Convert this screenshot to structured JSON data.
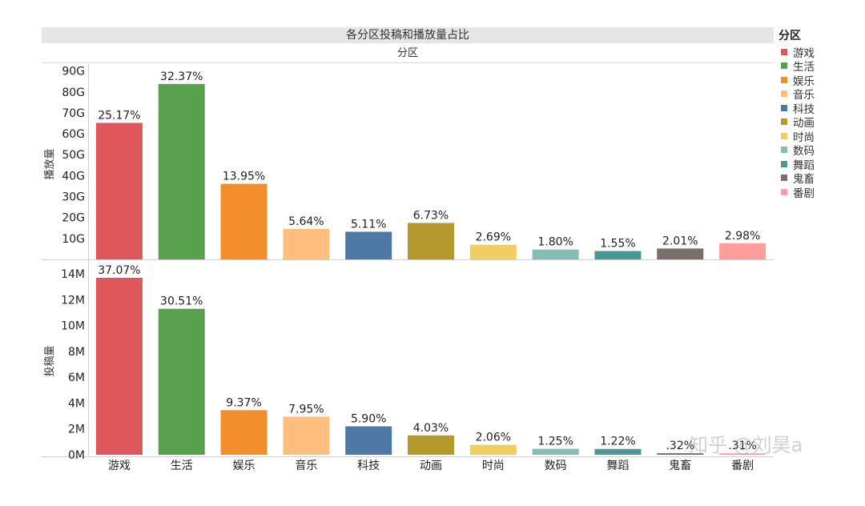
{
  "title": "各分区投稿和播放量占比",
  "column_header": "分区",
  "legend": {
    "title": "分区",
    "items": [
      {
        "label": "游戏",
        "color": "#e0575b"
      },
      {
        "label": "生活",
        "color": "#59a14f"
      },
      {
        "label": "娱乐",
        "color": "#f28e2b"
      },
      {
        "label": "音乐",
        "color": "#ffbe7d"
      },
      {
        "label": "科技",
        "color": "#4e79a7"
      },
      {
        "label": "动画",
        "color": "#b6992d"
      },
      {
        "label": "时尚",
        "color": "#f1ce63"
      },
      {
        "label": "数码",
        "color": "#86bcb6"
      },
      {
        "label": "舞蹈",
        "color": "#499894"
      },
      {
        "label": "鬼畜",
        "color": "#79706e"
      },
      {
        "label": "番剧",
        "color": "#ff9d9a"
      }
    ]
  },
  "watermark": "知乎 @刘昊a",
  "chart_data": [
    {
      "type": "bar",
      "ylabel": "播放量",
      "categories": [
        "游戏",
        "生活",
        "娱乐",
        "音乐",
        "科技",
        "动画",
        "时尚",
        "数码",
        "舞蹈",
        "鬼畜",
        "番剧"
      ],
      "values": [
        65.2,
        83.8,
        36.1,
        14.6,
        13.2,
        17.4,
        7.0,
        4.7,
        4.0,
        5.2,
        7.7
      ],
      "unit": "G",
      "labels": [
        "25.17%",
        "32.37%",
        "13.95%",
        "5.64%",
        "5.11%",
        "6.73%",
        "2.69%",
        "1.80%",
        "1.55%",
        "2.01%",
        "2.98%"
      ],
      "yticks": [
        "10G",
        "20G",
        "30G",
        "40G",
        "50G",
        "60G",
        "70G",
        "80G",
        "90G"
      ],
      "ytick_values": [
        10,
        20,
        30,
        40,
        50,
        60,
        70,
        80,
        90
      ],
      "ylim": [
        0,
        91
      ]
    },
    {
      "type": "bar",
      "ylabel": "投稿量",
      "categories": [
        "游戏",
        "生活",
        "娱乐",
        "音乐",
        "科技",
        "动画",
        "时尚",
        "数码",
        "舞蹈",
        "鬼畜",
        "番剧"
      ],
      "values": [
        13.7,
        11.3,
        3.45,
        2.95,
        2.2,
        1.5,
        0.77,
        0.46,
        0.45,
        0.12,
        0.11
      ],
      "unit": "M",
      "labels": [
        "37.07%",
        "30.51%",
        "9.37%",
        "7.95%",
        "5.90%",
        "4.03%",
        "2.06%",
        "1.25%",
        "1.22%",
        ".32%",
        ".31%"
      ],
      "yticks": [
        "0M",
        "2M",
        "4M",
        "6M",
        "8M",
        "10M",
        "12M",
        "14M"
      ],
      "ytick_values": [
        0,
        2,
        4,
        6,
        8,
        10,
        12,
        14
      ],
      "ylim": [
        0,
        14.5
      ]
    }
  ]
}
